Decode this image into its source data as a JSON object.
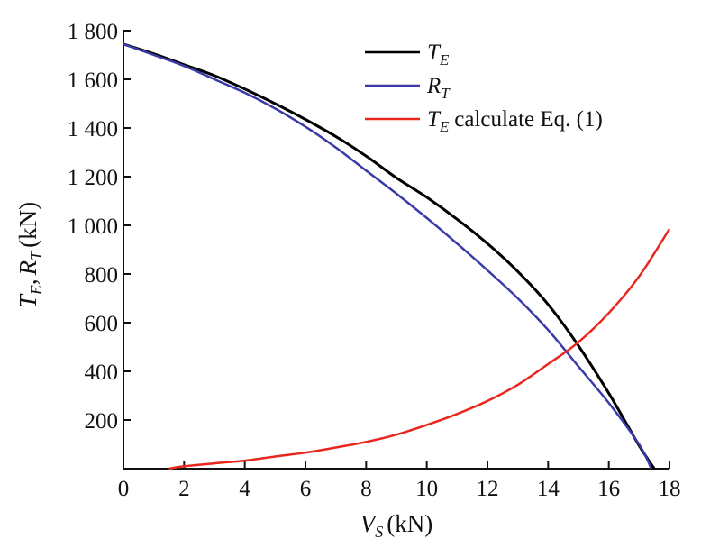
{
  "chart_data": {
    "type": "line",
    "title": "",
    "xlabel": {
      "var": "V",
      "sub": "S",
      "unit": "(kN)"
    },
    "ylabel": {
      "var1": "T",
      "sub1": "E",
      "sep": ",",
      "var2": "R",
      "sub2": "T",
      "unit": "(kN)"
    },
    "xlim": [
      0,
      18
    ],
    "ylim": [
      0,
      1800
    ],
    "x_ticks": [
      0,
      2,
      4,
      6,
      8,
      10,
      12,
      14,
      16,
      18
    ],
    "x_tick_labels": [
      "0",
      "2",
      "4",
      "6",
      "8",
      "10",
      "12",
      "14",
      "16",
      "18"
    ],
    "y_ticks": [
      200,
      400,
      600,
      800,
      1000,
      1200,
      1400,
      1600,
      1800
    ],
    "y_tick_labels": [
      "200",
      "400",
      "600",
      "800",
      "1 000",
      "1 200",
      "1 400",
      "1 600",
      "1 800"
    ],
    "grid": false,
    "legend_position": "top-right",
    "series": [
      {
        "name": "T_E",
        "legend": {
          "var": "T",
          "sub": "E",
          "suffix": ""
        },
        "color": "#000000",
        "x": [
          0,
          1,
          2,
          3,
          4,
          5,
          6,
          7,
          8,
          9,
          10,
          11,
          12,
          13,
          14,
          15,
          16,
          17,
          17.5
        ],
        "y": [
          1745,
          1705,
          1660,
          1615,
          1560,
          1500,
          1435,
          1365,
          1285,
          1195,
          1115,
          1025,
          925,
          810,
          675,
          505,
          310,
          95,
          0
        ]
      },
      {
        "name": "R_T",
        "legend": {
          "var": "R",
          "sub": "T",
          "suffix": ""
        },
        "color": "#3a3aa8",
        "x": [
          0,
          1,
          2,
          3,
          4,
          5,
          6,
          7,
          8,
          9,
          10,
          11,
          12,
          13,
          14,
          15,
          16,
          17,
          17.4
        ],
        "y": [
          1745,
          1700,
          1655,
          1600,
          1545,
          1480,
          1405,
          1320,
          1225,
          1130,
          1030,
          925,
          815,
          700,
          570,
          420,
          270,
          100,
          0
        ]
      },
      {
        "name": "T_E calculate Eq. (1)",
        "legend": {
          "var": "T",
          "sub": "E",
          "suffix": "calculate Eq. (1)"
        },
        "color": "#e8261c",
        "x": [
          1.5,
          2,
          3,
          4,
          5,
          6,
          7,
          8,
          9,
          10,
          11,
          12,
          13,
          14,
          15,
          16,
          17,
          18
        ],
        "y": [
          0,
          10,
          22,
          33,
          50,
          66,
          87,
          110,
          140,
          180,
          225,
          278,
          345,
          430,
          520,
          640,
          790,
          985
        ]
      }
    ]
  }
}
